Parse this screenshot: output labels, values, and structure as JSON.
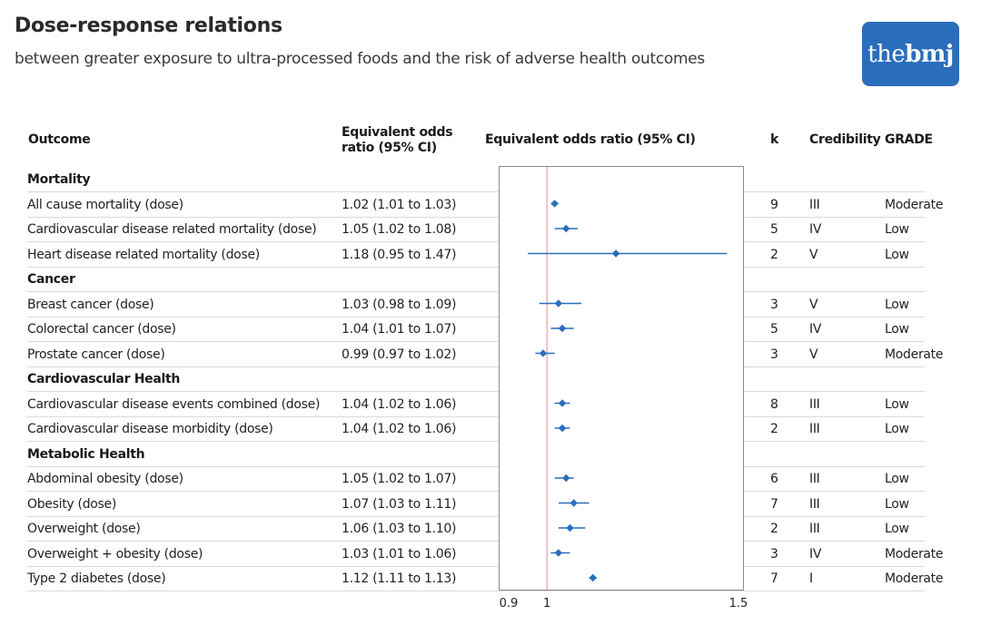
{
  "header": {
    "title": "Dose-response relations",
    "subtitle": "between greater exposure to ultra-processed foods and the risk of adverse health outcomes",
    "logo_light": "the",
    "logo_bold": "bmj"
  },
  "columns": {
    "outcome": "Outcome",
    "or_text": "Equivalent odds ratio (95% CI)",
    "plot": "Equivalent odds ratio (95% CI)",
    "k": "k",
    "credibility": "Credibility",
    "grade": "GRADE"
  },
  "colors": {
    "marker": "#2a6ebb",
    "reference_line": "#e8a0a0",
    "frame": "#8c8c8c"
  },
  "rows": [
    {
      "type": "group",
      "label": "Mortality"
    },
    {
      "type": "item",
      "outcome": "All cause mortality (dose)",
      "or_text": "1.02 (1.01 to 1.03)",
      "k": "9",
      "credibility": "III",
      "grade": "Moderate"
    },
    {
      "type": "item",
      "outcome": "Cardiovascular disease related mortality (dose)",
      "or_text": "1.05 (1.02 to 1.08)",
      "k": "5",
      "credibility": "IV",
      "grade": "Low"
    },
    {
      "type": "item",
      "outcome": "Heart disease related mortality (dose)",
      "or_text": "1.18 (0.95 to 1.47)",
      "k": "2",
      "credibility": "V",
      "grade": "Low"
    },
    {
      "type": "group",
      "label": "Cancer"
    },
    {
      "type": "item",
      "outcome": "Breast cancer (dose)",
      "or_text": "1.03 (0.98 to 1.09)",
      "k": "3",
      "credibility": "V",
      "grade": "Low"
    },
    {
      "type": "item",
      "outcome": "Colorectal cancer (dose)",
      "or_text": "1.04 (1.01 to 1.07)",
      "k": "5",
      "credibility": "IV",
      "grade": "Low"
    },
    {
      "type": "item",
      "outcome": "Prostate cancer (dose)",
      "or_text": "0.99 (0.97 to 1.02)",
      "k": "3",
      "credibility": "V",
      "grade": "Moderate"
    },
    {
      "type": "group",
      "label": "Cardiovascular Health"
    },
    {
      "type": "item",
      "outcome": "Cardiovascular disease events combined (dose)",
      "or_text": "1.04 (1.02 to 1.06)",
      "k": "8",
      "credibility": "III",
      "grade": "Low"
    },
    {
      "type": "item",
      "outcome": "Cardiovascular disease morbidity (dose)",
      "or_text": "1.04 (1.02 to 1.06)",
      "k": "2",
      "credibility": "III",
      "grade": "Low"
    },
    {
      "type": "group",
      "label": "Metabolic Health"
    },
    {
      "type": "item",
      "outcome": "Abdominal obesity (dose)",
      "or_text": "1.05 (1.02 to 1.07)",
      "k": "6",
      "credibility": "III",
      "grade": "Low"
    },
    {
      "type": "item",
      "outcome": "Obesity (dose)",
      "or_text": "1.07 (1.03 to 1.11)",
      "k": "7",
      "credibility": "III",
      "grade": "Low"
    },
    {
      "type": "item",
      "outcome": "Overweight (dose)",
      "or_text": "1.06 (1.03 to 1.10)",
      "k": "2",
      "credibility": "III",
      "grade": "Low"
    },
    {
      "type": "item",
      "outcome": "Overweight + obesity (dose)",
      "or_text": "1.03 (1.01 to 1.06)",
      "k": "3",
      "credibility": "IV",
      "grade": "Moderate"
    },
    {
      "type": "item",
      "outcome": "Type 2 diabetes (dose)",
      "or_text": "1.12 (1.11 to 1.13)",
      "k": "7",
      "credibility": "I",
      "grade": "Moderate"
    }
  ],
  "chart_data": {
    "type": "forest",
    "title": "Equivalent odds ratio (95% CI)",
    "xlim": [
      0.9,
      1.5
    ],
    "xticks": [
      "0.9",
      "1",
      "1.5"
    ],
    "xtick_values": [
      0.9,
      1,
      1.5
    ],
    "reference_value": 1,
    "categories": [
      "All cause mortality (dose)",
      "Cardiovascular disease related mortality (dose)",
      "Heart disease related mortality (dose)",
      "Breast cancer (dose)",
      "Colorectal cancer (dose)",
      "Prostate cancer (dose)",
      "Cardiovascular disease events combined (dose)",
      "Cardiovascular disease morbidity (dose)",
      "Abdominal obesity (dose)",
      "Obesity (dose)",
      "Overweight (dose)",
      "Overweight + obesity (dose)",
      "Type 2 diabetes (dose)"
    ],
    "estimates": [
      1.02,
      1.05,
      1.18,
      1.03,
      1.04,
      0.99,
      1.04,
      1.04,
      1.05,
      1.07,
      1.06,
      1.03,
      1.12
    ],
    "lower": [
      1.01,
      1.02,
      0.95,
      0.98,
      1.01,
      0.97,
      1.02,
      1.02,
      1.02,
      1.03,
      1.03,
      1.01,
      1.11
    ],
    "upper": [
      1.03,
      1.08,
      1.47,
      1.09,
      1.07,
      1.02,
      1.06,
      1.06,
      1.07,
      1.11,
      1.1,
      1.06,
      1.13
    ]
  }
}
